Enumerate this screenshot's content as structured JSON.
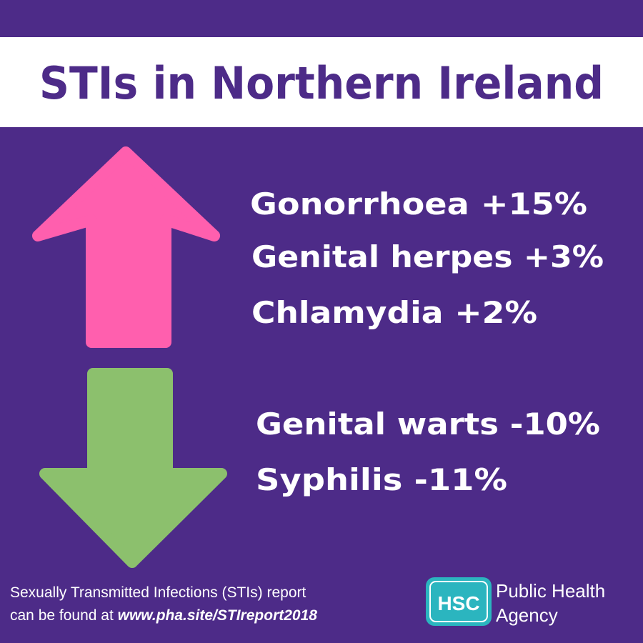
{
  "header": {
    "title": "STIs in Northern Ireland"
  },
  "increases": [
    "Gonorrhoea +15%",
    "Genital herpes +3%",
    "Chlamydia +2%"
  ],
  "decreases": [
    "Genital warts -10%",
    "Syphilis -11%"
  ],
  "footer": {
    "line1": "Sexually Transmitted Infections (STIs) report",
    "line2_prefix": "can be found at",
    "link": "www.pha.site/STIreport2018"
  },
  "logo": {
    "badge": "HSC",
    "name_line1": "Public Health",
    "name_line2": "Agency"
  }
}
